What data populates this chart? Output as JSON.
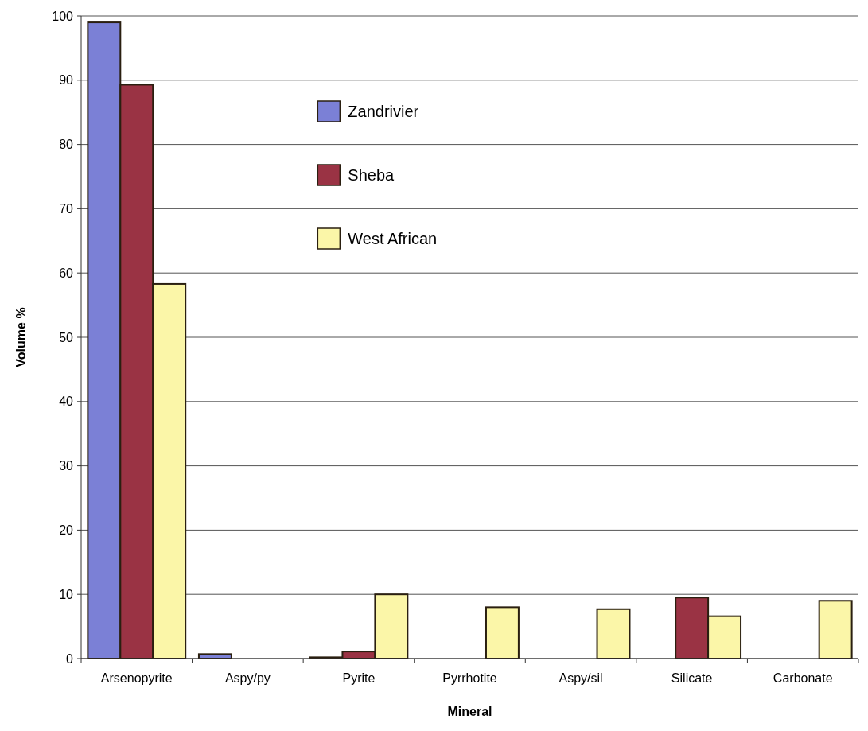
{
  "chart_data": {
    "type": "bar",
    "xlabel": "Mineral",
    "ylabel": "Volume %",
    "categories": [
      "Arsenopyrite",
      "Aspy/py",
      "Pyrite",
      "Pyrrhotite",
      "Aspy/sil",
      "Silicate",
      "Carbonate"
    ],
    "series": [
      {
        "name": "Zandrivier",
        "color": "#7b80d6",
        "values": [
          99,
          0.7,
          0.2,
          0,
          0,
          0,
          0
        ]
      },
      {
        "name": "Sheba",
        "color": "#9a3344",
        "values": [
          89.3,
          0,
          1.1,
          0,
          0,
          9.5,
          0
        ]
      },
      {
        "name": "West African",
        "color": "#fbf6a8",
        "values": [
          58.3,
          0,
          10,
          8,
          7.7,
          6.6,
          9
        ]
      }
    ],
    "ylim": [
      0,
      100
    ],
    "yticks": [
      0,
      10,
      20,
      30,
      40,
      50,
      60,
      70,
      80,
      90,
      100
    ],
    "grid": "y",
    "legend": "top"
  }
}
